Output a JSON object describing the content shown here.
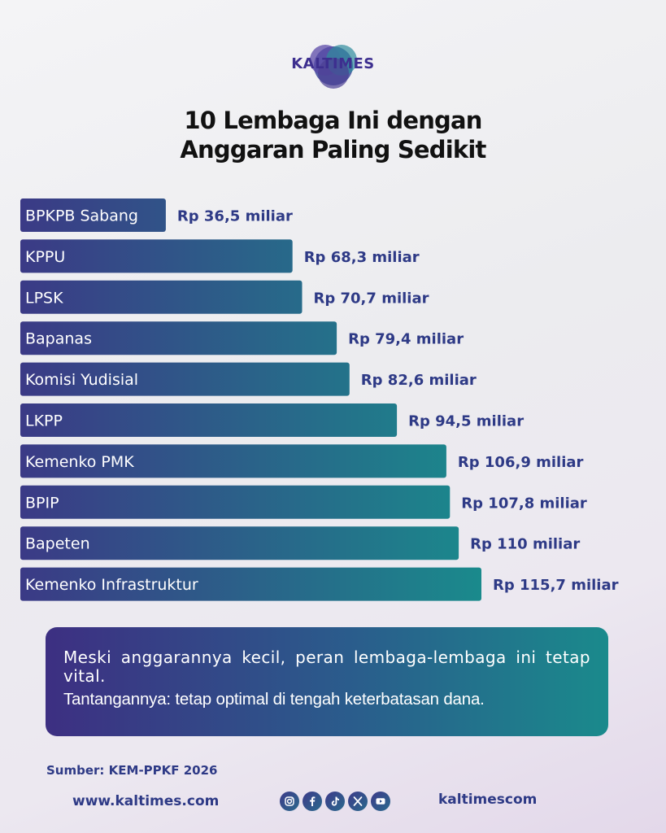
{
  "brand": {
    "name": "KALTIMES"
  },
  "title": {
    "line1": "10 Lembaga Ini dengan",
    "line2": "Anggaran Paling Sedikit"
  },
  "chart_data": {
    "type": "bar",
    "orientation": "horizontal",
    "categories": [
      "BPKPB Sabang",
      "KPPU",
      "LPSK",
      "Bapanas",
      "Komisi Yudisial",
      "LKPP",
      "Kemenko PMK",
      "BPIP",
      "Bapeten",
      "Kemenko Infrastruktur"
    ],
    "values": [
      36.5,
      68.3,
      70.7,
      79.4,
      82.6,
      94.5,
      106.9,
      107.8,
      110,
      115.7
    ],
    "value_labels": [
      "Rp 36,5 miliar",
      "Rp 68,3 miliar",
      "Rp 70,7 miliar",
      "Rp 79,4 miliar",
      "Rp 82,6 miliar",
      "Rp 94,5 miliar",
      "Rp 106,9 miliar",
      "Rp 107,8 miliar",
      "Rp 110 miliar",
      "Rp 115,7 miliar"
    ],
    "unit": "miliar",
    "xlim": [
      0,
      115.7
    ],
    "grid": false,
    "bar_color_start": "#3b3a86",
    "bar_color_end": "#1a8a8c",
    "value_label_color": "#2e3a86"
  },
  "callout": {
    "line1": "Meski anggarannya kecil, peran lembaga-lembaga ini tetap vital.",
    "line2": "Tantangannya: tetap optimal di tengah keterbatasan dana."
  },
  "footer": {
    "source": "Sumber: KEM-PPKF 2026",
    "website": "www.kaltimes.com",
    "handle": "kaltimescom",
    "social_icons": [
      "instagram-icon",
      "facebook-icon",
      "tiktok-icon",
      "x-icon",
      "youtube-icon"
    ]
  }
}
